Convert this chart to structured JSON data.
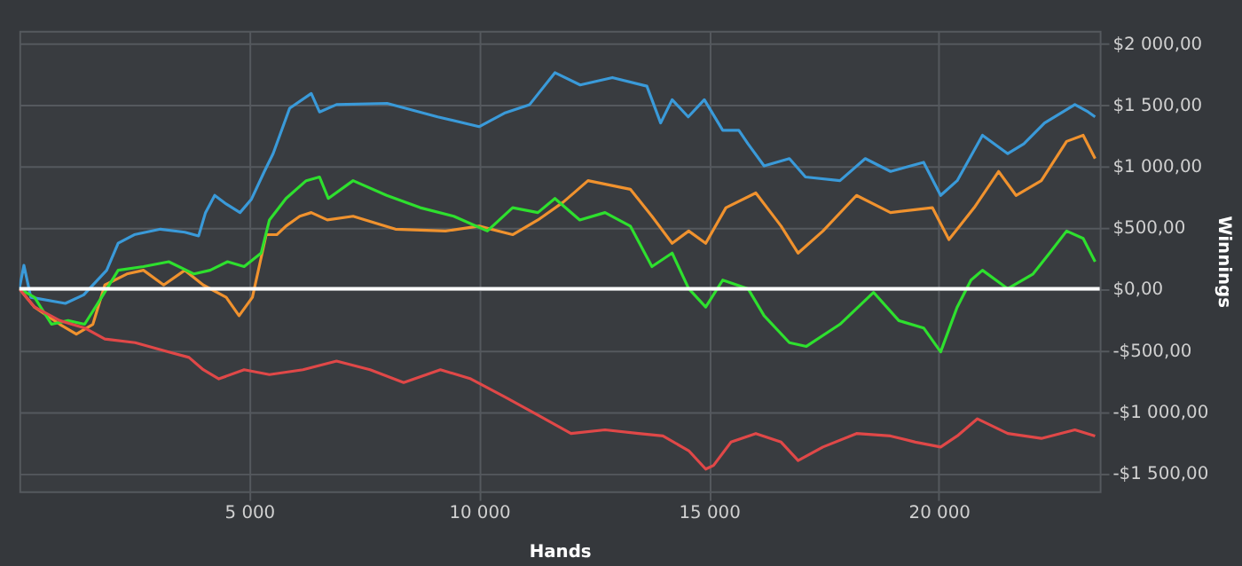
{
  "chart_data": {
    "type": "line",
    "xlabel": "Hands",
    "ylabel": "Winnings",
    "xlim": [
      0,
      23500
    ],
    "ylim": [
      -1650,
      2100
    ],
    "xticks": [
      {
        "value": 5000,
        "label": "5 000"
      },
      {
        "value": 10000,
        "label": "10 000"
      },
      {
        "value": 15000,
        "label": "15 000"
      },
      {
        "value": 20000,
        "label": "20 000"
      }
    ],
    "yticks": [
      {
        "value": -1500,
        "label": "-$1 500,00"
      },
      {
        "value": -1000,
        "label": "-$1 000,00"
      },
      {
        "value": -500,
        "label": "-$500,00"
      },
      {
        "value": 0,
        "label": "$0,00"
      },
      {
        "value": 500,
        "label": "$500,00"
      },
      {
        "value": 1000,
        "label": "$1 000,00"
      },
      {
        "value": 1500,
        "label": "$1 500,00"
      },
      {
        "value": 2000,
        "label": "$2 000,00"
      }
    ],
    "grid": true,
    "legend": false,
    "marker": "none",
    "line_style": "solid",
    "ref_lines": [
      {
        "axis": "y",
        "value": 0,
        "label": null,
        "color": "#ffffff"
      }
    ],
    "series": [
      {
        "color": "#3a9ad9",
        "x": [
          0,
          100,
          250,
          1000,
          1400,
          1900,
          2150,
          2500,
          3070,
          3600,
          3900,
          4050,
          4250,
          4500,
          4800,
          5050,
          5330,
          5520,
          5880,
          6350,
          6530,
          6900,
          8000,
          9100,
          10000,
          10550,
          11100,
          11650,
          12200,
          12900,
          13650,
          13950,
          14200,
          14550,
          14900,
          15300,
          15650,
          15850,
          16200,
          16750,
          17100,
          17850,
          18400,
          18950,
          19670,
          20040,
          20400,
          20950,
          21500,
          21850,
          22300,
          22960,
          23250,
          23400
        ],
        "values": [
          0,
          190,
          -70,
          -120,
          -50,
          150,
          370,
          440,
          485,
          460,
          430,
          620,
          760,
          690,
          620,
          730,
          955,
          1100,
          1470,
          1590,
          1440,
          1500,
          1510,
          1400,
          1320,
          1430,
          1500,
          1760,
          1660,
          1720,
          1650,
          1350,
          1540,
          1400,
          1540,
          1290,
          1290,
          1180,
          1000,
          1060,
          910,
          880,
          1060,
          955,
          1030,
          760,
          880,
          1250,
          1100,
          1180,
          1350,
          1500,
          1440,
          1400
        ]
      },
      {
        "color": "#f0922e",
        "x": [
          0,
          330,
          880,
          1240,
          1600,
          1860,
          2340,
          2700,
          3140,
          3600,
          4000,
          4500,
          4780,
          5070,
          5370,
          5600,
          5800,
          6100,
          6350,
          6700,
          7260,
          8180,
          9270,
          10000,
          10730,
          11280,
          11830,
          12370,
          13290,
          13760,
          14200,
          14560,
          14930,
          15370,
          16020,
          16570,
          16940,
          17480,
          18210,
          18950,
          19860,
          20220,
          20770,
          21300,
          21680,
          22230,
          22780,
          23140,
          23400
        ],
        "values": [
          0,
          -150,
          -290,
          -370,
          -290,
          30,
          120,
          150,
          30,
          150,
          30,
          -70,
          -220,
          -70,
          440,
          440,
          510,
          590,
          620,
          560,
          590,
          485,
          470,
          510,
          440,
          560,
          705,
          880,
          810,
          590,
          370,
          470,
          370,
          660,
          780,
          510,
          290,
          470,
          760,
          620,
          660,
          400,
          660,
          955,
          760,
          880,
          1200,
          1250,
          1060
        ]
      },
      {
        "color": "#2ee02e",
        "x": [
          0,
          330,
          700,
          1060,
          1420,
          1790,
          2150,
          2700,
          3250,
          3800,
          4150,
          4530,
          4890,
          5260,
          5440,
          5800,
          6240,
          6530,
          6720,
          7260,
          7990,
          8720,
          9450,
          10180,
          10730,
          11280,
          11650,
          12190,
          12740,
          13290,
          13760,
          14200,
          14560,
          14930,
          15300,
          15850,
          16200,
          16750,
          17120,
          17850,
          18580,
          19130,
          19670,
          20040,
          20400,
          20700,
          20950,
          21500,
          22050,
          22410,
          22780,
          23140,
          23400
        ],
        "values": [
          0,
          -70,
          -290,
          -260,
          -290,
          -70,
          150,
          180,
          220,
          120,
          150,
          220,
          180,
          290,
          560,
          735,
          880,
          910,
          735,
          880,
          760,
          660,
          590,
          470,
          660,
          620,
          735,
          560,
          620,
          510,
          180,
          290,
          0,
          -150,
          70,
          0,
          -220,
          -440,
          -470,
          -290,
          -30,
          -260,
          -320,
          -515,
          -150,
          70,
          150,
          0,
          120,
          290,
          470,
          410,
          220
        ]
      },
      {
        "color": "#e04848",
        "x": [
          0,
          330,
          880,
          1420,
          1860,
          2520,
          3250,
          3690,
          4000,
          4340,
          4890,
          5440,
          6170,
          6900,
          7630,
          8360,
          9160,
          9820,
          10550,
          11280,
          12000,
          12740,
          13470,
          14000,
          14560,
          14930,
          15100,
          15480,
          16020,
          16570,
          16940,
          17480,
          18210,
          18950,
          19490,
          20040,
          20400,
          20840,
          21500,
          22230,
          22960,
          23400
        ],
        "values": [
          0,
          -150,
          -260,
          -320,
          -410,
          -440,
          -515,
          -560,
          -660,
          -735,
          -660,
          -700,
          -660,
          -590,
          -660,
          -765,
          -660,
          -735,
          -880,
          -1030,
          -1180,
          -1150,
          -1180,
          -1200,
          -1320,
          -1470,
          -1440,
          -1250,
          -1180,
          -1250,
          -1400,
          -1290,
          -1180,
          -1200,
          -1250,
          -1290,
          -1200,
          -1060,
          -1180,
          -1220,
          -1150,
          -1200
        ]
      }
    ]
  }
}
